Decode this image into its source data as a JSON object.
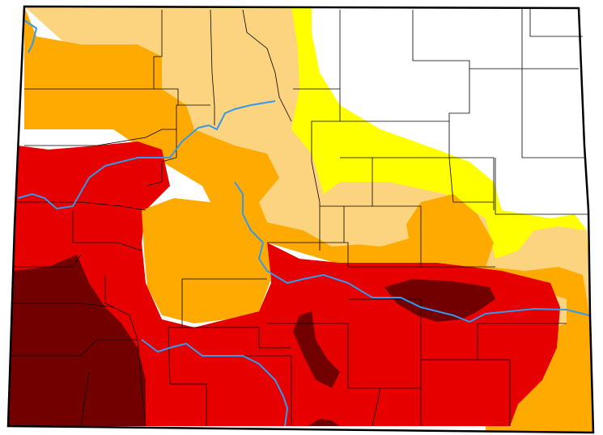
{
  "map": {
    "region": "Colorado",
    "colors": {
      "none": "#ffffff",
      "d0_abnormally_dry": "#ffff00",
      "d1_moderate": "#fcd37f",
      "d2_severe": "#ffaa00",
      "d3_extreme": "#e60000",
      "d4_exceptional": "#730000",
      "rivers": "#3399ee",
      "boundaries": "#000000"
    },
    "features": [
      "drought-areas",
      "county-boundaries",
      "rivers",
      "state-outline"
    ]
  }
}
